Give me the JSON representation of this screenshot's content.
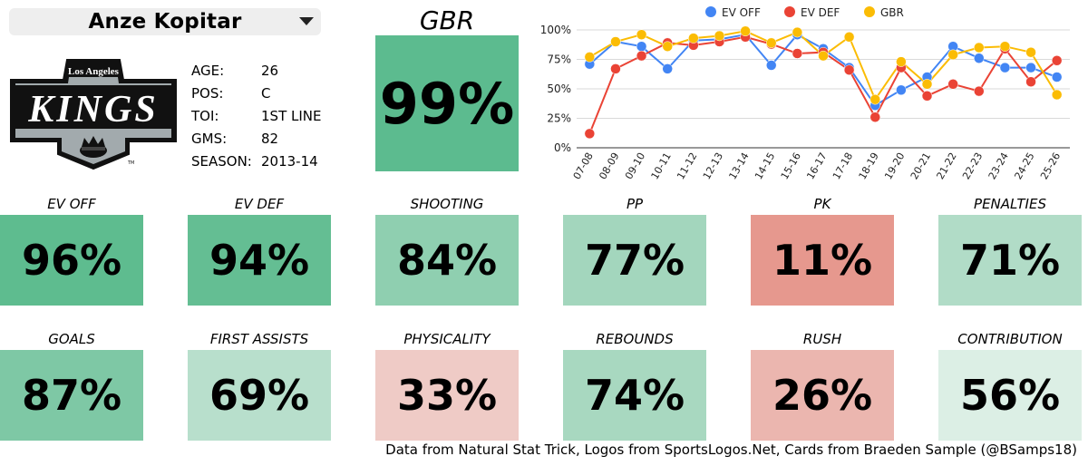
{
  "player": {
    "name": "Anze Kopitar"
  },
  "logo": {
    "top_text": "Los Angeles",
    "main_text": "KINGS",
    "tm": "TM"
  },
  "info": [
    {
      "label": "AGE:",
      "value": "26"
    },
    {
      "label": "POS:",
      "value": "C"
    },
    {
      "label": "TOI:",
      "value": "1ST LINE"
    },
    {
      "label": "GMS:",
      "value": "82"
    },
    {
      "label": "SEASON:",
      "value": "2013-14"
    }
  ],
  "gbr": {
    "title": "GBR",
    "value": "99%",
    "color": "#5cbb8f"
  },
  "tiles_row1": [
    {
      "label": "EV OFF",
      "value": "96%",
      "color": "#5ebc8f"
    },
    {
      "label": "EV DEF",
      "value": "94%",
      "color": "#64be93"
    },
    {
      "label": "SHOOTING",
      "value": "84%",
      "color": "#8fcfb0"
    },
    {
      "label": "PP",
      "value": "77%",
      "color": "#a3d6bd"
    },
    {
      "label": "PK",
      "value": "11%",
      "color": "#e6988e"
    },
    {
      "label": "PENALTIES",
      "value": "71%",
      "color": "#b1dcc7"
    }
  ],
  "tiles_row2": [
    {
      "label": "GOALS",
      "value": "87%",
      "color": "#7ec8a5"
    },
    {
      "label": "FIRST ASSISTS",
      "value": "69%",
      "color": "#b8dfcc"
    },
    {
      "label": "PHYSICALITY",
      "value": "33%",
      "color": "#efcbc6"
    },
    {
      "label": "REBOUNDS",
      "value": "74%",
      "color": "#a8d8c0"
    },
    {
      "label": "RUSH",
      "value": "26%",
      "color": "#ebb6af"
    },
    {
      "label": "CONTRIBUTION",
      "value": "56%",
      "color": "#dcefe5"
    }
  ],
  "footer": "Data from Natural Stat Trick, Logos from SportsLogos.Net, Cards from Braeden Sample (@BSamps18)",
  "chart_data": {
    "type": "line",
    "categories": [
      "07-08",
      "08-09",
      "09-10",
      "10-11",
      "11-12",
      "12-13",
      "13-14",
      "14-15",
      "15-16",
      "16-17",
      "17-18",
      "18-19",
      "19-20",
      "20-21",
      "21-22",
      "22-23",
      "23-24",
      "24-25",
      "25-26"
    ],
    "series": [
      {
        "name": "EV OFF",
        "color": "#4285f4",
        "values": [
          71,
          90,
          86,
          67,
          91,
          92,
          96,
          70,
          96,
          84,
          68,
          36,
          49,
          60,
          86,
          76,
          68,
          68,
          60
        ]
      },
      {
        "name": "EV DEF",
        "color": "#ea4335",
        "values": [
          12,
          67,
          78,
          89,
          87,
          90,
          94,
          88,
          80,
          81,
          66,
          26,
          68,
          44,
          54,
          48,
          84,
          56,
          74
        ]
      },
      {
        "name": "GBR",
        "color": "#fbbc04",
        "values": [
          77,
          90,
          96,
          86,
          93,
          95,
          99,
          89,
          98,
          78,
          94,
          41,
          73,
          54,
          79,
          85,
          86,
          81,
          45
        ]
      }
    ],
    "yticks": [
      "0%",
      "25%",
      "50%",
      "75%",
      "100%"
    ],
    "ylim": [
      0,
      100
    ],
    "legend": "top",
    "grid": true
  }
}
